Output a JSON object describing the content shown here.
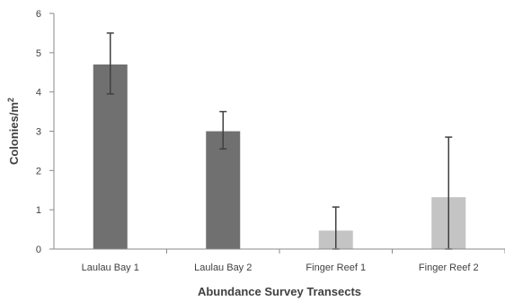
{
  "chart_data": {
    "type": "bar",
    "title": "",
    "xlabel": "Abundance Survey Transects",
    "ylabel_main": "Colonies/m",
    "ylabel_sup": "2",
    "categories": [
      "Laulau Bay 1",
      "Laulau Bay 2",
      "Finger Reef 1",
      "Finger Reef 2"
    ],
    "values": [
      4.7,
      3.0,
      0.47,
      1.32
    ],
    "error_upper": [
      5.5,
      3.5,
      1.07,
      2.85
    ],
    "error_lower": [
      3.95,
      2.55,
      0.0,
      0.0
    ],
    "bar_colors": [
      "#707070",
      "#707070",
      "#c4c4c4",
      "#c4c4c4"
    ],
    "ylim": [
      0,
      6
    ],
    "yticks": [
      "0",
      "1",
      "2",
      "3",
      "4",
      "5",
      "6"
    ],
    "grid": false,
    "legend": "none"
  }
}
